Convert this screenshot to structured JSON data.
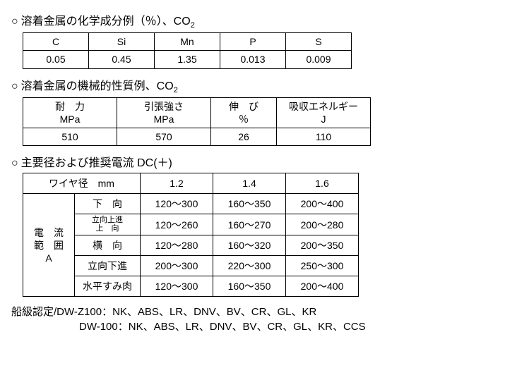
{
  "chem": {
    "title_prefix": "○",
    "title": "溶着金属の化学成分例（％）、CO",
    "title_sub": "2",
    "headers": [
      "C",
      "Si",
      "Mn",
      "P",
      "S"
    ],
    "values": [
      "0.05",
      "0.45",
      "1.35",
      "0.013",
      "0.009"
    ]
  },
  "mech": {
    "title_prefix": "○",
    "title": "溶着金属の機械的性質例、CO",
    "title_sub": "2",
    "headers": [
      {
        "l1": "耐　力",
        "l2": "MPa"
      },
      {
        "l1": "引張強さ",
        "l2": "MPa"
      },
      {
        "l1": "伸　び",
        "l2": "％"
      },
      {
        "l1": "吸収エネルギー",
        "l2": "J"
      }
    ],
    "values": [
      "510",
      "570",
      "26",
      "110"
    ]
  },
  "wire": {
    "title_prefix": "○",
    "title": "主要径および推奨電流 DC(＋)",
    "diam_label": "ワイヤ径　mm",
    "diams": [
      "1.2",
      "1.4",
      "1.6"
    ],
    "range_lines": [
      "電　流",
      "範　囲",
      "A"
    ],
    "rows": [
      {
        "pos": "下　向",
        "vals": [
          "120～300",
          "160～350",
          "200～400"
        ]
      },
      {
        "pos_l1": "立向上進",
        "pos_l2": "上　向",
        "vals": [
          "120～260",
          "160～270",
          "200～280"
        ]
      },
      {
        "pos": "横　向",
        "vals": [
          "120～280",
          "160～320",
          "200～350"
        ]
      },
      {
        "pos": "立向下進",
        "vals": [
          "200～300",
          "220～300",
          "250～300"
        ]
      },
      {
        "pos": "水平すみ肉",
        "vals": [
          "120～300",
          "160～350",
          "200～400"
        ]
      }
    ]
  },
  "footer": {
    "label": "船級認定",
    "line1": "/DW-Z100：NK、ABS、LR、DNV、BV、CR、GL、KR",
    "line2": "DW-100：NK、ABS、LR、DNV、BV、CR、GL、KR、CCS"
  }
}
